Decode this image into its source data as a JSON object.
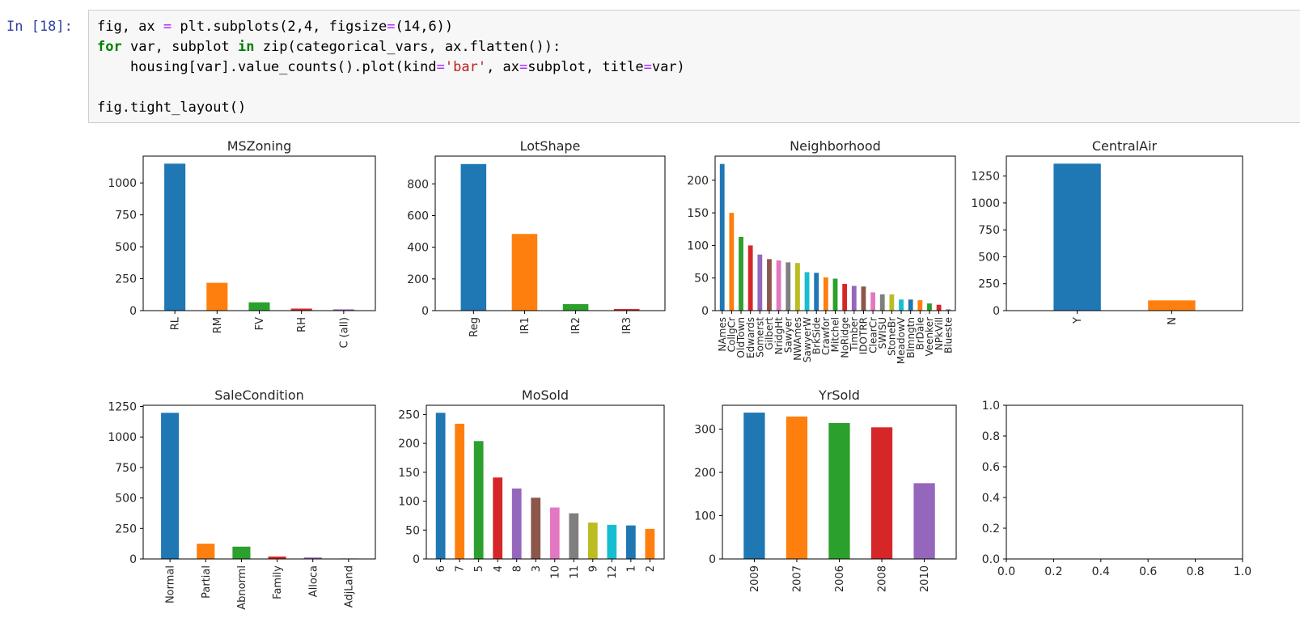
{
  "prompt": "In [18]:",
  "code_lines": [
    "fig, ax = plt.subplots(2,4, figsize=(14,6))",
    "for var, subplot in zip(categorical_vars, ax.flatten()):",
    "    housing[var].value_counts().plot(kind='bar', ax=subplot, title=var)",
    "",
    "fig.tight_layout()"
  ],
  "colors": {
    "prompt": "#303f9f",
    "keyword": "#008000",
    "string": "#ba2121",
    "operator": "#aa22ff",
    "palette": [
      "#1f77b4",
      "#ff7f0e",
      "#2ca02c",
      "#d62728",
      "#9467bd",
      "#8c564b",
      "#e377c2",
      "#7f7f7f",
      "#bcbd22",
      "#17becf"
    ]
  },
  "chart_data": [
    {
      "type": "bar",
      "title": "MSZoning",
      "categories": [
        "RL",
        "RM",
        "FV",
        "RH",
        "C (all)"
      ],
      "values": [
        1151,
        218,
        65,
        16,
        10
      ],
      "ylim": [
        0,
        1210
      ],
      "yticks": [
        0,
        250,
        500,
        750,
        1000
      ],
      "grid": false
    },
    {
      "type": "bar",
      "title": "LotShape",
      "categories": [
        "Reg",
        "IR1",
        "IR2",
        "IR3"
      ],
      "values": [
        925,
        484,
        41,
        10
      ],
      "ylim": [
        0,
        975
      ],
      "yticks": [
        0,
        200,
        400,
        600,
        800
      ],
      "grid": false
    },
    {
      "type": "bar",
      "title": "Neighborhood",
      "categories": [
        "NAmes",
        "CollgCr",
        "OldTown",
        "Edwards",
        "Somerst",
        "Gilbert",
        "NridgHt",
        "Sawyer",
        "NWAmes",
        "SawyerW",
        "BrkSide",
        "Crawfor",
        "Mitchel",
        "NoRidge",
        "Timber",
        "IDOTRR",
        "ClearCr",
        "SWISU",
        "StoneBr",
        "MeadowV",
        "Blmngtn",
        "BrDale",
        "Veenker",
        "NPkVill",
        "Blueste"
      ],
      "values": [
        225,
        150,
        113,
        100,
        86,
        79,
        77,
        74,
        73,
        59,
        58,
        51,
        49,
        41,
        38,
        37,
        28,
        25,
        25,
        17,
        17,
        16,
        11,
        9,
        2
      ],
      "ylim": [
        0,
        237
      ],
      "yticks": [
        0,
        50,
        100,
        150,
        200
      ],
      "grid": false
    },
    {
      "type": "bar",
      "title": "CentralAir",
      "categories": [
        "Y",
        "N"
      ],
      "values": [
        1365,
        95
      ],
      "ylim": [
        0,
        1435
      ],
      "yticks": [
        0,
        250,
        500,
        750,
        1000,
        1250
      ],
      "grid": false
    },
    {
      "type": "bar",
      "title": "SaleCondition",
      "categories": [
        "Normal",
        "Partial",
        "Abnorml",
        "Family",
        "Alloca",
        "AdjLand"
      ],
      "values": [
        1198,
        125,
        101,
        20,
        12,
        4
      ],
      "ylim": [
        0,
        1260
      ],
      "yticks": [
        0,
        250,
        500,
        750,
        1000,
        1250
      ],
      "grid": false
    },
    {
      "type": "bar",
      "title": "MoSold",
      "categories": [
        "6",
        "7",
        "5",
        "4",
        "8",
        "3",
        "10",
        "11",
        "9",
        "12",
        "1",
        "2"
      ],
      "values": [
        253,
        234,
        204,
        141,
        122,
        106,
        89,
        79,
        63,
        59,
        58,
        52
      ],
      "ylim": [
        0,
        266
      ],
      "yticks": [
        0,
        50,
        100,
        150,
        200,
        250
      ],
      "grid": false
    },
    {
      "type": "bar",
      "title": "YrSold",
      "categories": [
        "2009",
        "2007",
        "2006",
        "2008",
        "2010"
      ],
      "values": [
        338,
        329,
        314,
        304,
        175
      ],
      "ylim": [
        0,
        355
      ],
      "yticks": [
        0,
        100,
        200,
        300
      ],
      "grid": false
    },
    {
      "type": "empty",
      "title": "",
      "xlim": [
        0,
        1
      ],
      "ylim": [
        0,
        1
      ],
      "xticks": [
        "0.0",
        "0.2",
        "0.4",
        "0.6",
        "0.8",
        "1.0"
      ],
      "yticks": [
        "0.0",
        "0.2",
        "0.4",
        "0.6",
        "0.8",
        "1.0"
      ],
      "grid": false
    }
  ]
}
